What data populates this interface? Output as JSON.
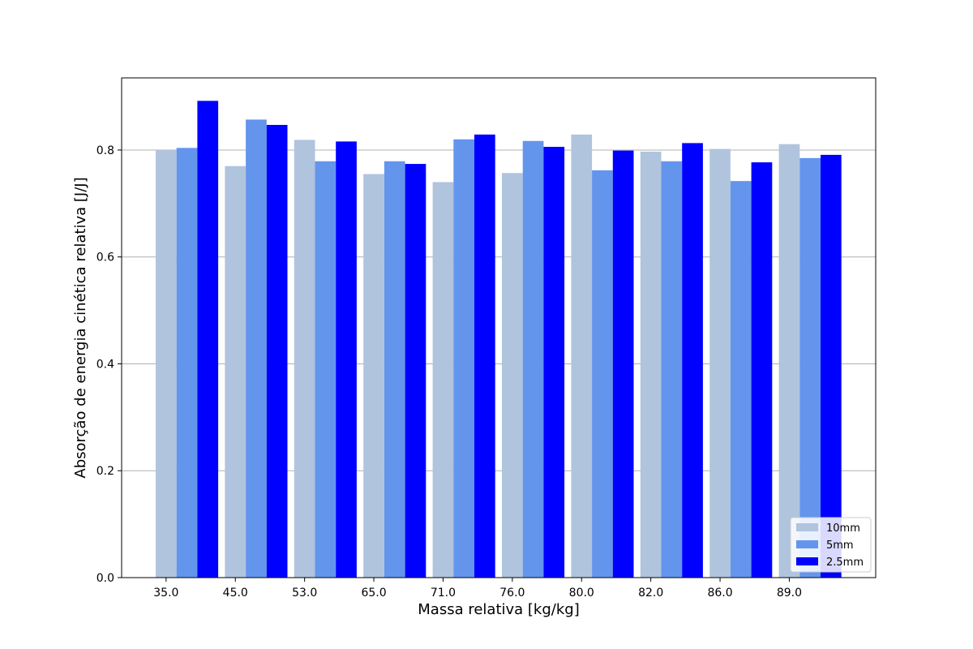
{
  "chart_data": {
    "type": "bar",
    "title": "",
    "xlabel": "Massa relativa [kg/kg]",
    "ylabel": "Absorção de energia cinética relativa [J/J]",
    "categories": [
      "35.0",
      "45.0",
      "53.0",
      "65.0",
      "71.0",
      "76.0",
      "80.0",
      "82.0",
      "86.0",
      "89.0"
    ],
    "series": [
      {
        "name": "10mm",
        "color": "#b0c4de",
        "values": [
          0.8,
          0.77,
          0.819,
          0.755,
          0.74,
          0.757,
          0.829,
          0.797,
          0.802,
          0.811
        ]
      },
      {
        "name": "5mm",
        "color": "#6495ed",
        "values": [
          0.804,
          0.857,
          0.779,
          0.779,
          0.82,
          0.817,
          0.762,
          0.779,
          0.742,
          0.785
        ]
      },
      {
        "name": "2.5mm",
        "color": "#0000ff",
        "values": [
          0.892,
          0.847,
          0.816,
          0.774,
          0.829,
          0.806,
          0.799,
          0.813,
          0.777,
          0.791
        ]
      }
    ],
    "yticks": [
      "0.0",
      "0.2",
      "0.4",
      "0.6",
      "0.8"
    ],
    "ylim": [
      0,
      0.935
    ],
    "grid": "y",
    "legend_position": "lower-right"
  }
}
